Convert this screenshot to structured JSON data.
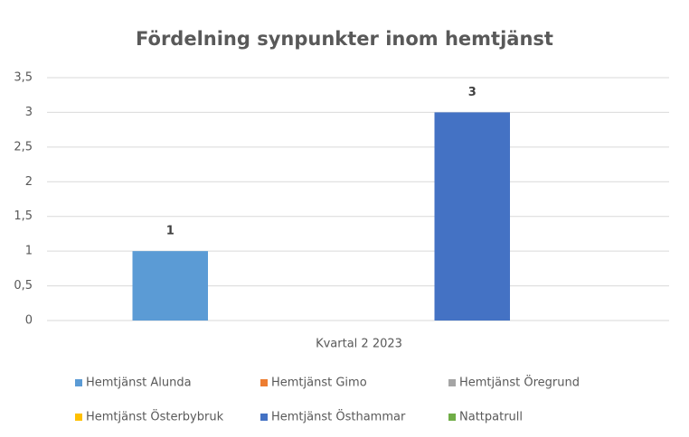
{
  "chart_data": {
    "type": "bar",
    "title": "Fördelning synpunkter inom hemtjänst",
    "categories": [
      "Kvartal 2 2023"
    ],
    "series": [
      {
        "name": "Hemtjänst Alunda",
        "color": "#5b9bd5",
        "values": [
          1
        ]
      },
      {
        "name": "Hemtjänst Gimo",
        "color": "#ed7d31",
        "values": [
          null
        ]
      },
      {
        "name": "Hemtjänst Öregrund",
        "color": "#a5a5a5",
        "values": [
          null
        ]
      },
      {
        "name": "Hemtjänst Österbybruk",
        "color": "#ffc000",
        "values": [
          null
        ]
      },
      {
        "name": "Hemtjänst Östhammar",
        "color": "#4472c4",
        "values": [
          3
        ]
      },
      {
        "name": "Nattpatrull",
        "color": "#70ad47",
        "values": [
          null
        ]
      }
    ],
    "ylim": [
      0,
      3.5
    ],
    "yticks": [
      0,
      {
        "value": 0.5,
        "label": "0,5"
      },
      1,
      {
        "value": 1.5,
        "label": "1,5"
      },
      2,
      {
        "value": 2.5,
        "label": "2,5"
      },
      3,
      {
        "value": 3.5,
        "label": "3,5"
      }
    ],
    "grid": true,
    "legend": "bottom"
  }
}
